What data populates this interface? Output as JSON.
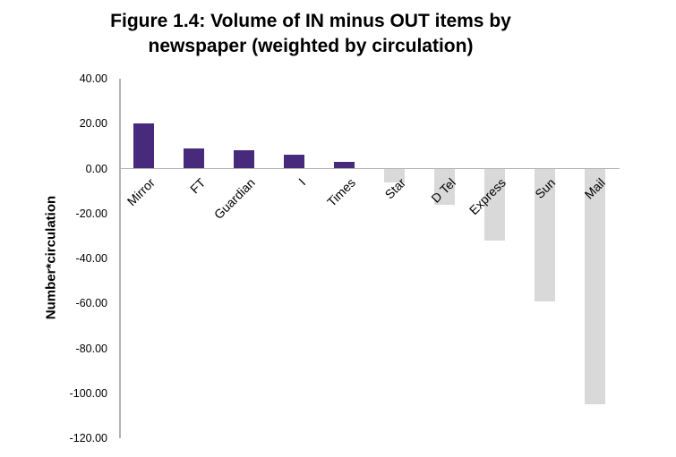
{
  "chart_data": {
    "type": "bar",
    "title": "Figure 1.4: Volume of IN minus OUT items by newspaper (weighted by circulation)",
    "title_line1": "Figure 1.4: Volume of IN minus OUT items by",
    "title_line2": "newspaper (weighted by circulation)",
    "xlabel": "",
    "ylabel": "Number*circulation",
    "categories": [
      "Mirror",
      "FT",
      "Guardian",
      "I",
      "Times",
      "Star",
      "D Tel",
      "Express",
      "Sun",
      "Mail"
    ],
    "values": [
      20,
      9,
      8,
      6,
      3,
      -6,
      -16,
      -32,
      -59,
      -105
    ],
    "ylim": [
      -120,
      40
    ],
    "ytick_step": 20,
    "ytick_labels": [
      "40.00",
      "20.00",
      "0.00",
      "-20.00",
      "-40.00",
      "-60.00",
      "-80.00",
      "-100.00",
      "-120.00"
    ],
    "grid": false,
    "legend_position": "none",
    "colors": {
      "positive_bar": "#482a7d",
      "negative_bar": "#d9d9d9",
      "axis": "#b2b2b2",
      "text": "#000000",
      "background": "#ffffff"
    }
  }
}
